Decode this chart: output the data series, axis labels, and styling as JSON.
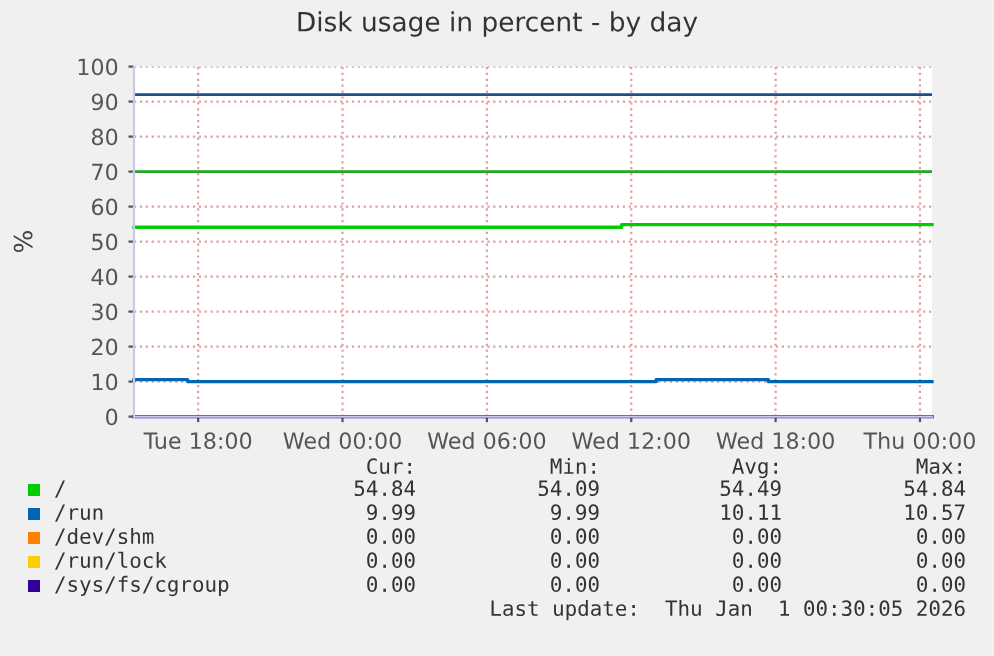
{
  "chart_data": {
    "type": "step",
    "title": "Disk usage in percent - by day",
    "ylabel": "%",
    "xlim": [
      "2025-12-30T15:20",
      "2026-01-01T00:30"
    ],
    "xticks": [
      {
        "value": "2025-12-30T18:00",
        "label": "Tue 18:00"
      },
      {
        "value": "2025-12-31T00:00",
        "label": "Wed 00:00"
      },
      {
        "value": "2025-12-31T06:00",
        "label": "Wed 06:00"
      },
      {
        "value": "2025-12-31T12:00",
        "label": "Wed 12:00"
      },
      {
        "value": "2025-12-31T18:00",
        "label": "Wed 18:00"
      },
      {
        "value": "2026-01-01T00:00",
        "label": "Thu 00:00"
      }
    ],
    "ylim": [
      0,
      100
    ],
    "yticks": [
      0,
      10,
      20,
      30,
      40,
      50,
      60,
      70,
      80,
      90,
      100
    ],
    "grid": true,
    "legend": "bottom",
    "series": [
      {
        "name": "/",
        "color": "#00cc00",
        "x": [
          "2025-12-30T15:20",
          "2025-12-31T11:36",
          "2026-01-01T00:30"
        ],
        "values": [
          54.09,
          54.84,
          54.84
        ]
      },
      {
        "name": "/run",
        "color": "#0066b3",
        "x": [
          "2025-12-30T15:20",
          "2025-12-30T17:34",
          "2025-12-31T13:02",
          "2025-12-31T17:42",
          "2026-01-01T00:30"
        ],
        "values": [
          10.57,
          9.99,
          10.57,
          9.99,
          9.99
        ]
      },
      {
        "name": "/dev/shm",
        "color": "#ff8000"
      },
      {
        "name": "/run/lock",
        "color": "#ffcc00"
      },
      {
        "name": "/sys/fs/cgroup",
        "color": "#330099",
        "x": [
          "2025-12-30T15:20",
          "2026-01-01T00:30"
        ],
        "values": [
          0,
          0
        ]
      }
    ],
    "ref_lines": [
      {
        "axis": "y",
        "value": 92,
        "label": null,
        "color": "#1f4e8c"
      },
      {
        "axis": "y",
        "value": 70,
        "label": null,
        "color": "#22aa22"
      }
    ],
    "annotations": [
      "Cur:",
      "Min:",
      "Avg:",
      "Max:",
      "54.84",
      "54.09",
      "54.49",
      "54.84",
      "9.99",
      "9.99",
      "10.11",
      "10.57",
      "0.00",
      "0.00",
      "0.00",
      "0.00",
      "0.00",
      "0.00",
      "0.00",
      "0.00",
      "0.00",
      "0.00",
      "0.00",
      "0.00",
      "Last update:  Thu Jan  1 00:30:05 2026"
    ]
  }
}
